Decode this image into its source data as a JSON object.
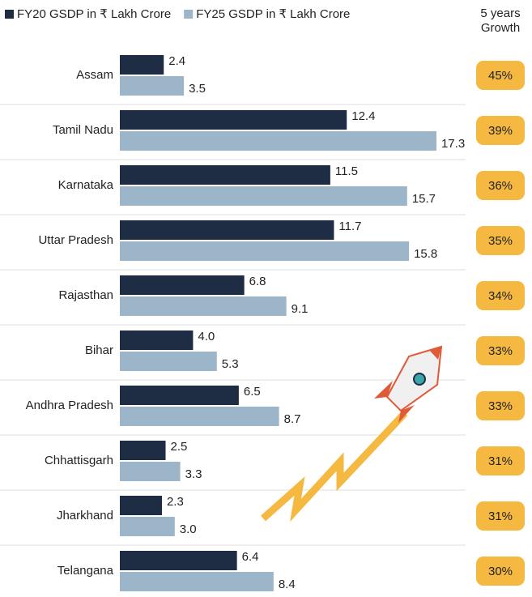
{
  "chart_data": {
    "type": "bar",
    "orientation": "horizontal",
    "categories": [
      "Assam",
      "Tamil Nadu",
      "Karnataka",
      "Uttar Pradesh",
      "Rajasthan",
      "Bihar",
      "Andhra Pradesh",
      "Chhattisgarh",
      "Jharkhand",
      "Telangana"
    ],
    "series": [
      {
        "name": "FY20 GSDP in ₹ Lakh Crore",
        "color": "#1f2d44",
        "values": [
          2.4,
          12.4,
          11.5,
          11.7,
          6.8,
          4.0,
          6.5,
          2.5,
          2.3,
          6.4
        ],
        "value_labels": [
          "2.4",
          "12.4",
          "11.5",
          "11.7",
          "6.8",
          "4.0",
          "6.5",
          "2.5",
          "2.3",
          "6.4"
        ]
      },
      {
        "name": "FY25 GSDP in ₹ Lakh Crore",
        "color": "#9db5c8",
        "values": [
          3.5,
          17.3,
          15.7,
          15.8,
          9.1,
          5.3,
          8.7,
          3.3,
          3.0,
          8.4
        ],
        "value_labels": [
          "3.5",
          "17.3",
          "15.7",
          "15.8",
          "9.1",
          "5.3",
          "8.7",
          "3.3",
          "3.0",
          "8.4"
        ]
      }
    ],
    "growth": {
      "name": "5 years Growth",
      "color": "#f5b942",
      "values": [
        45,
        39,
        36,
        35,
        34,
        33,
        33,
        31,
        31,
        30
      ],
      "value_labels": [
        "45%",
        "39%",
        "36%",
        "35%",
        "34%",
        "33%",
        "33%",
        "31%",
        "31%",
        "30%"
      ]
    }
  }
}
